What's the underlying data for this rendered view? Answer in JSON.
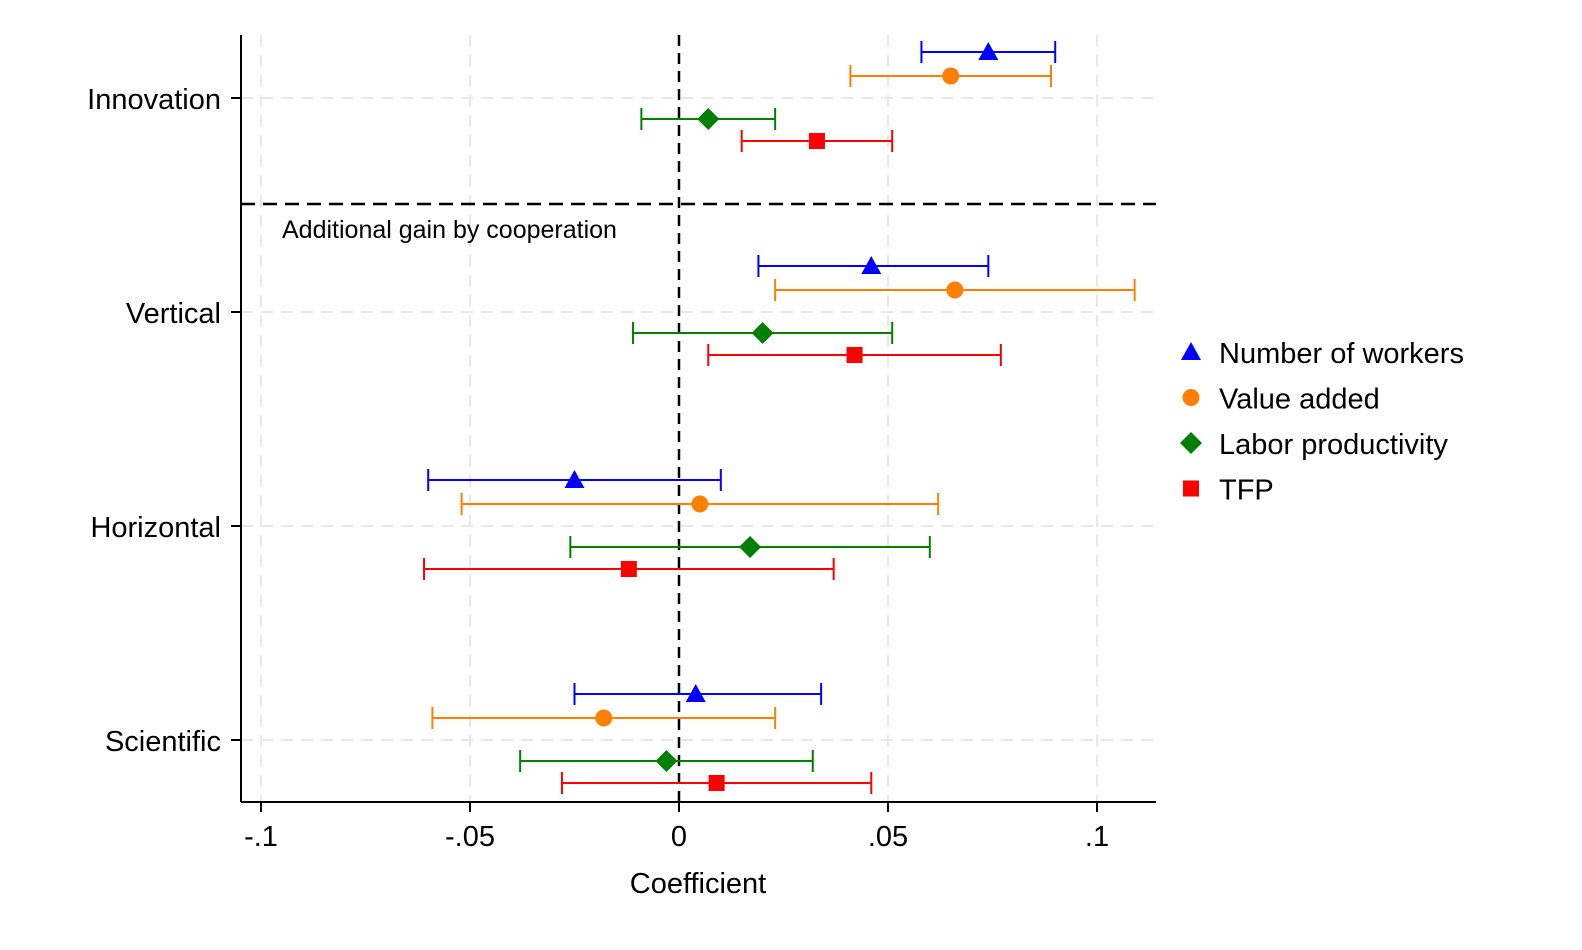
{
  "chart_data": {
    "type": "scatter",
    "subtype": "coefficient-plot-with-confidence-intervals",
    "xlabel": "Coefficient",
    "ylabel": "",
    "xlim": [
      -0.105,
      0.114
    ],
    "xticks": [
      -0.1,
      -0.05,
      0,
      0.05,
      0.1
    ],
    "xtick_labels": [
      "-.1",
      "-.05",
      "0",
      ".05",
      ".1"
    ],
    "grid": true,
    "reference_line_x": 0,
    "categories": [
      "Innovation",
      "Vertical",
      "Horizontal",
      "Scientific"
    ],
    "section_label": "Additional gain by cooperation",
    "legend_position": "right",
    "series": [
      {
        "name": "Number of workers",
        "color": "#0000ff",
        "marker": "triangle",
        "values": [
          0.074,
          0.046,
          -0.025,
          0.004
        ],
        "ci_low": [
          0.058,
          0.019,
          -0.06,
          -0.025
        ],
        "ci_high": [
          0.09,
          0.074,
          0.01,
          0.034
        ]
      },
      {
        "name": "Value added",
        "color": "#ff8000",
        "marker": "circle",
        "values": [
          0.065,
          0.066,
          0.005,
          -0.018
        ],
        "ci_low": [
          0.041,
          0.023,
          -0.052,
          -0.059
        ],
        "ci_high": [
          0.089,
          0.109,
          0.062,
          0.023
        ]
      },
      {
        "name": "Labor productivity",
        "color": "#008000",
        "marker": "diamond",
        "values": [
          0.007,
          0.02,
          0.017,
          -0.003
        ],
        "ci_low": [
          -0.009,
          -0.011,
          -0.026,
          -0.038
        ],
        "ci_high": [
          0.023,
          0.051,
          0.06,
          0.032
        ]
      },
      {
        "name": "TFP",
        "color": "#ff0000",
        "marker": "square",
        "values": [
          0.033,
          0.042,
          -0.012,
          0.009
        ],
        "ci_low": [
          0.015,
          0.007,
          -0.061,
          -0.028
        ],
        "ci_high": [
          0.051,
          0.077,
          0.037,
          0.046
        ]
      }
    ]
  }
}
